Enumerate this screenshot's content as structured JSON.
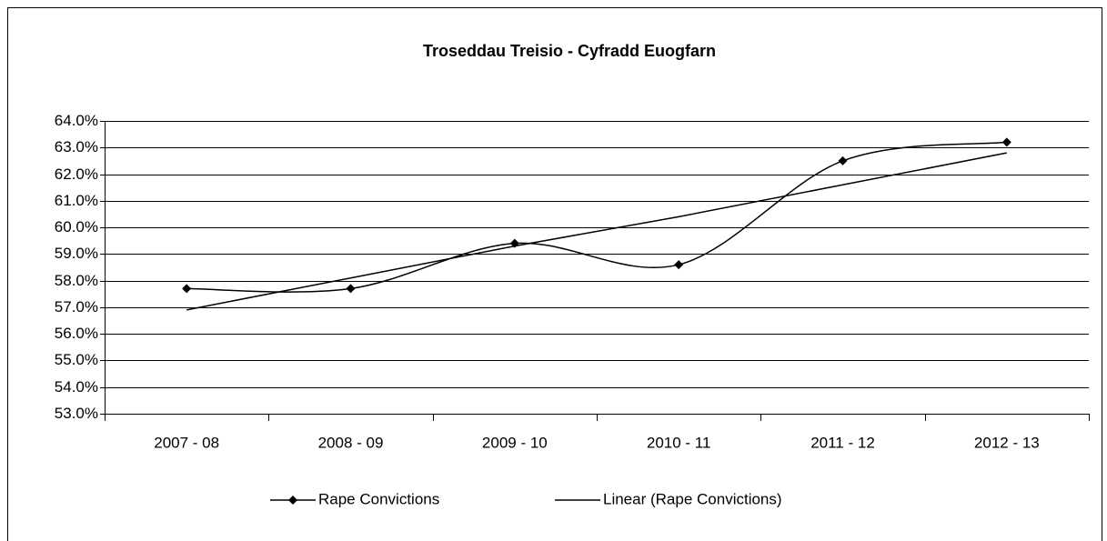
{
  "chart_data": {
    "type": "line",
    "title": "Troseddau Treisio - Cyfradd Euogfarn",
    "categories": [
      "2007 - 08",
      "2008 - 09",
      "2009 - 10",
      "2010 - 11",
      "2011 - 12",
      "2012 - 13"
    ],
    "series": [
      {
        "name": "Rape Convictions",
        "color": "#000000",
        "values": [
          57.7,
          57.7,
          59.4,
          58.6,
          62.5,
          63.2
        ]
      },
      {
        "name": "Linear (Rape Convictions)",
        "color": "#000000",
        "values": [
          56.9,
          58.1,
          59.3,
          60.4,
          61.6,
          62.8
        ]
      }
    ],
    "ylim": [
      53,
      64
    ],
    "yticks": [
      {
        "value": 53,
        "label": "53.0%"
      },
      {
        "value": 54,
        "label": "54.0%"
      },
      {
        "value": 55,
        "label": "55.0%"
      },
      {
        "value": 56,
        "label": "56.0%"
      },
      {
        "value": 57,
        "label": "57.0%"
      },
      {
        "value": 58,
        "label": "58.0%"
      },
      {
        "value": 59,
        "label": "59.0%"
      },
      {
        "value": 60,
        "label": "60.0%"
      },
      {
        "value": 61,
        "label": "61.0%"
      },
      {
        "value": 62,
        "label": "62.0%"
      },
      {
        "value": 63,
        "label": "63.0%"
      },
      {
        "value": 64,
        "label": "64.0%"
      }
    ],
    "grid": true,
    "legend": "bottom"
  }
}
